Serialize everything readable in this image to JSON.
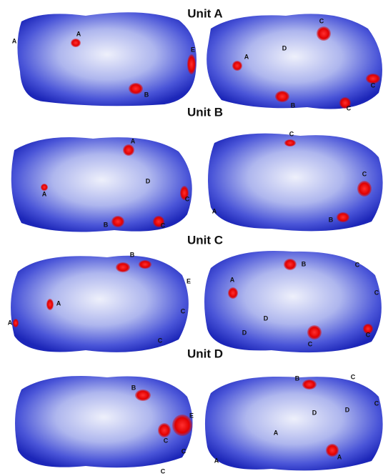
{
  "panels": [
    {
      "title": "Unit A",
      "left": [
        "A",
        "A",
        "B",
        "E"
      ],
      "right": [
        "C",
        "D",
        "A",
        "C",
        "C",
        "B"
      ]
    },
    {
      "title": "Unit B",
      "left": [
        "A",
        "D",
        "A",
        "C",
        "B",
        "C"
      ],
      "right": [
        "C",
        "C",
        "A",
        "B"
      ]
    },
    {
      "title": "Unit C",
      "left": [
        "B",
        "E",
        "A",
        "C",
        "A",
        "C"
      ],
      "right": [
        "B",
        "C",
        "A",
        "C",
        "D",
        "D",
        "C",
        "C"
      ]
    },
    {
      "title": "Unit D",
      "left": [
        "B",
        "E",
        "C",
        "C",
        "C"
      ],
      "right": [
        "B",
        "C",
        "C",
        "D",
        "D",
        "A",
        "A",
        "A"
      ]
    }
  ]
}
